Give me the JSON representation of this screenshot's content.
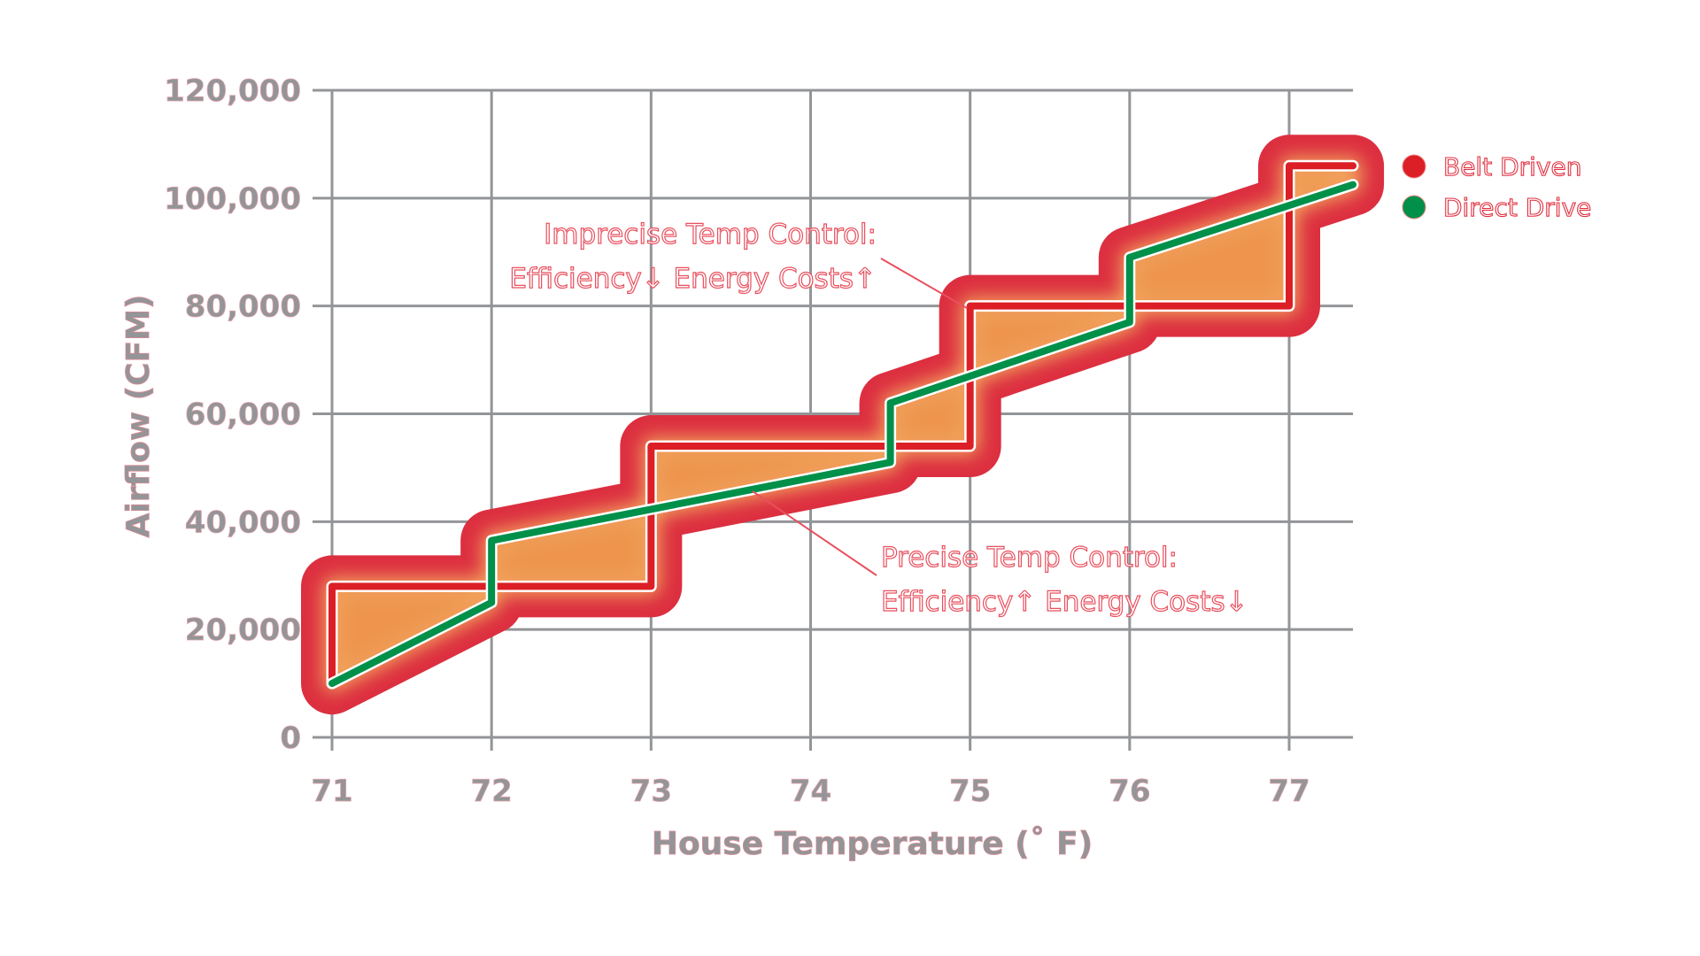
{
  "chart_data": {
    "type": "line",
    "title": "",
    "xlabel": "House Temperature (˚ F)",
    "ylabel": "Airflow (CFM)",
    "xlim": [
      71,
      77.4
    ],
    "ylim": [
      0,
      120000
    ],
    "x_ticks": [
      "71",
      "72",
      "73",
      "74",
      "75",
      "76",
      "77"
    ],
    "x_tick_values": [
      71,
      72,
      73,
      74,
      75,
      76,
      77
    ],
    "y_ticks": [
      "0",
      "20,000",
      "40,000",
      "60,000",
      "80,000",
      "100,000",
      "120,000"
    ],
    "y_tick_values": [
      0,
      20000,
      40000,
      60000,
      80000,
      100000,
      120000
    ],
    "grid": true,
    "legend_placement": "top-right",
    "series": [
      {
        "name": "Belt Driven",
        "color": "#dc1f26",
        "points": [
          [
            71,
            10000
          ],
          [
            71,
            28000
          ],
          [
            73,
            28000
          ],
          [
            73,
            54000
          ],
          [
            75,
            54000
          ],
          [
            75,
            80000
          ],
          [
            77,
            80000
          ],
          [
            77,
            106000
          ],
          [
            77.4,
            106000
          ]
        ]
      },
      {
        "name": "Direct Drive",
        "color": "#00904a",
        "points": [
          [
            71,
            10000
          ],
          [
            72,
            25000
          ],
          [
            72,
            36500
          ],
          [
            74.5,
            51000
          ],
          [
            74.5,
            62000
          ],
          [
            76,
            77000
          ],
          [
            76,
            89000
          ],
          [
            77.4,
            102500
          ]
        ]
      }
    ],
    "annotations": [
      {
        "lines": [
          "Imprecise Temp Control:",
          "Efficiency↓   Energy Costs↑"
        ],
        "points_to": [
          75,
          80000
        ]
      },
      {
        "lines": [
          "Precise Temp Control:",
          "Efficiency↑   Energy Costs↓"
        ],
        "points_to": [
          73.6,
          46000
        ]
      }
    ]
  }
}
